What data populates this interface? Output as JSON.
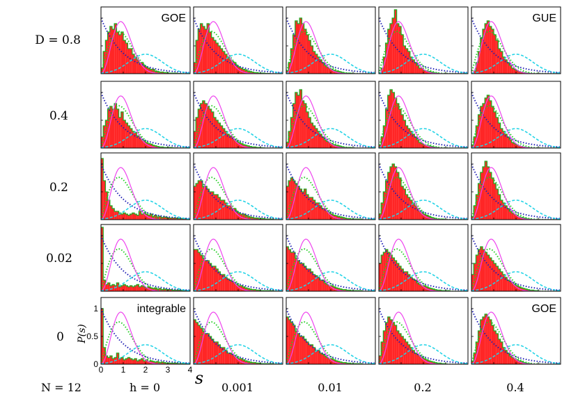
{
  "chart_data": {
    "type": "line",
    "description_kind": "grid of level-spacing distribution panels",
    "xlabel": "s",
    "ylabel": "P(s)",
    "xlim": [
      0,
      4
    ],
    "ylim": [
      0,
      1.2
    ],
    "x_ticks": [
      "0",
      "1",
      "2",
      "3",
      "4"
    ],
    "y_ticks": [
      "0",
      "0.5",
      "1"
    ],
    "row_parameter": "D",
    "rows": [
      "D = 0.8",
      "0.4",
      "0.2",
      "0.02",
      "0"
    ],
    "column_parameter": "h",
    "columns": [
      "h = 0",
      "0.001",
      "0.01",
      "0.2",
      "0.4"
    ],
    "size_label": "N = 12",
    "annotations": [
      {
        "row": 0,
        "col": 0,
        "text": "GOE"
      },
      {
        "row": 0,
        "col": 4,
        "text": "GUE"
      },
      {
        "row": 4,
        "col": 0,
        "text": "integrable"
      },
      {
        "row": 4,
        "col": 4,
        "text": "GOE"
      }
    ],
    "reference_curves": [
      {
        "name": "Poisson",
        "formula": "exp(-s)",
        "color": "#1f1fb4",
        "style": "dotted"
      },
      {
        "name": "GOE (Wigner)",
        "formula": "(pi/2) s exp(-pi s^2/4)",
        "color": "#22cc22",
        "style": "dotted"
      },
      {
        "name": "GUE",
        "formula": "(32/pi^2) s^2 exp(-4 s^2/pi)",
        "color": "#ee44ee",
        "style": "solid"
      },
      {
        "name": "Shifted Gaussian",
        "formula": "0.35 exp(-(s-2)^2/1.1)",
        "color": "#22d3e6",
        "style": "dashed"
      }
    ],
    "histogram_colors": {
      "fill": "#ff0000",
      "outline": "#22aa22"
    },
    "bin_edges": [
      0,
      0.1,
      0.2,
      0.3,
      0.4,
      0.5,
      0.6,
      0.7,
      0.8,
      0.9,
      1.0,
      1.1,
      1.2,
      1.3,
      1.4,
      1.5,
      1.6,
      1.7,
      1.8,
      1.9,
      2.0,
      2.1,
      2.2,
      2.3,
      2.4,
      2.5,
      2.6,
      2.7,
      2.8,
      2.9,
      3.0,
      3.2,
      3.4,
      3.6,
      3.8,
      4.0
    ],
    "histograms": [
      [
        [
          0.1,
          0.4,
          0.6,
          0.75,
          0.85,
          0.8,
          0.9,
          0.75,
          0.7,
          0.75,
          0.6,
          0.55,
          0.45,
          0.45,
          0.35,
          0.3,
          0.25,
          0.2,
          0.2,
          0.15,
          0.12,
          0.1,
          0.08,
          0.08,
          0.05,
          0.04,
          0.03,
          0.03,
          0.02,
          0.02,
          0.01,
          0.01,
          0.005,
          0.0,
          0.0
        ],
        [
          0.2,
          0.6,
          0.8,
          0.9,
          0.85,
          0.8,
          0.9,
          0.75,
          0.65,
          0.6,
          0.55,
          0.5,
          0.45,
          0.4,
          0.35,
          0.3,
          0.25,
          0.22,
          0.2,
          0.15,
          0.12,
          0.1,
          0.08,
          0.07,
          0.05,
          0.04,
          0.03,
          0.02,
          0.02,
          0.01,
          0.01,
          0.005,
          0.0,
          0.0,
          0.0
        ],
        [
          0.05,
          0.2,
          0.45,
          0.7,
          0.95,
          0.9,
          1.0,
          0.9,
          0.8,
          0.7,
          0.6,
          0.5,
          0.4,
          0.35,
          0.3,
          0.25,
          0.2,
          0.15,
          0.12,
          0.1,
          0.08,
          0.06,
          0.05,
          0.04,
          0.03,
          0.02,
          0.01,
          0.01,
          0.01,
          0.0,
          0.0,
          0.0,
          0.0,
          0.0,
          0.0
        ],
        [
          0.02,
          0.1,
          0.3,
          0.55,
          0.8,
          0.9,
          1.0,
          1.15,
          0.9,
          0.85,
          0.7,
          0.5,
          0.45,
          0.4,
          0.3,
          0.25,
          0.2,
          0.15,
          0.1,
          0.1,
          0.06,
          0.05,
          0.04,
          0.03,
          0.02,
          0.01,
          0.01,
          0.0,
          0.0,
          0.0,
          0.0,
          0.0,
          0.0,
          0.0,
          0.0
        ],
        [
          0.01,
          0.05,
          0.2,
          0.4,
          0.65,
          0.8,
          0.9,
          0.95,
          0.85,
          0.8,
          0.7,
          0.6,
          0.45,
          0.4,
          0.3,
          0.25,
          0.2,
          0.15,
          0.1,
          0.08,
          0.06,
          0.04,
          0.03,
          0.02,
          0.01,
          0.01,
          0.0,
          0.0,
          0.0,
          0.0,
          0.0,
          0.0,
          0.0,
          0.0,
          0.0
        ]
      ],
      [
        [
          0.2,
          0.4,
          0.5,
          0.7,
          0.75,
          0.7,
          0.8,
          0.7,
          0.55,
          0.65,
          0.5,
          0.45,
          0.4,
          0.35,
          0.3,
          0.28,
          0.22,
          0.2,
          0.15,
          0.13,
          0.1,
          0.08,
          0.07,
          0.05,
          0.04,
          0.03,
          0.02,
          0.02,
          0.01,
          0.01,
          0.01,
          0.005,
          0.0,
          0.0,
          0.0
        ],
        [
          0.3,
          0.55,
          0.7,
          0.8,
          0.85,
          0.8,
          0.75,
          0.7,
          0.65,
          0.55,
          0.5,
          0.45,
          0.4,
          0.35,
          0.3,
          0.25,
          0.22,
          0.2,
          0.15,
          0.12,
          0.1,
          0.08,
          0.06,
          0.05,
          0.04,
          0.03,
          0.02,
          0.02,
          0.01,
          0.01,
          0.005,
          0.0,
          0.0,
          0.0,
          0.0
        ],
        [
          0.1,
          0.3,
          0.55,
          0.8,
          1.0,
          0.95,
          1.05,
          0.85,
          0.8,
          0.65,
          0.55,
          0.45,
          0.4,
          0.35,
          0.3,
          0.25,
          0.2,
          0.15,
          0.12,
          0.1,
          0.08,
          0.06,
          0.05,
          0.04,
          0.03,
          0.02,
          0.01,
          0.01,
          0.01,
          0.0,
          0.0,
          0.0,
          0.0,
          0.0,
          0.0
        ],
        [
          0.05,
          0.2,
          0.4,
          0.7,
          0.95,
          1.05,
          1.0,
          0.9,
          0.8,
          0.7,
          0.6,
          0.5,
          0.4,
          0.35,
          0.3,
          0.25,
          0.2,
          0.15,
          0.1,
          0.08,
          0.06,
          0.05,
          0.04,
          0.03,
          0.02,
          0.01,
          0.01,
          0.0,
          0.0,
          0.0,
          0.0,
          0.0,
          0.0,
          0.0,
          0.0
        ],
        [
          0.05,
          0.2,
          0.4,
          0.6,
          0.75,
          0.8,
          0.9,
          0.95,
          0.85,
          0.75,
          0.65,
          0.55,
          0.45,
          0.35,
          0.3,
          0.25,
          0.2,
          0.15,
          0.1,
          0.08,
          0.06,
          0.04,
          0.03,
          0.02,
          0.01,
          0.01,
          0.0,
          0.0,
          0.0,
          0.0,
          0.0,
          0.0,
          0.0,
          0.0,
          0.0
        ]
      ],
      [
        [
          1.1,
          0.7,
          0.5,
          0.35,
          0.25,
          0.2,
          0.15,
          0.15,
          0.12,
          0.1,
          0.12,
          0.1,
          0.08,
          0.1,
          0.12,
          0.1,
          0.08,
          0.15,
          0.1,
          0.12,
          0.1,
          0.08,
          0.1,
          0.06,
          0.08,
          0.05,
          0.06,
          0.04,
          0.05,
          0.04,
          0.03,
          0.03,
          0.02,
          0.02,
          0.01
        ],
        [
          0.6,
          0.65,
          0.7,
          0.7,
          0.6,
          0.6,
          0.55,
          0.5,
          0.5,
          0.45,
          0.45,
          0.4,
          0.35,
          0.35,
          0.3,
          0.25,
          0.25,
          0.2,
          0.2,
          0.15,
          0.12,
          0.1,
          0.1,
          0.08,
          0.06,
          0.05,
          0.04,
          0.03,
          0.03,
          0.02,
          0.02,
          0.01,
          0.01,
          0.0,
          0.0
        ],
        [
          0.6,
          0.7,
          0.75,
          0.7,
          0.65,
          0.6,
          0.55,
          0.5,
          0.55,
          0.45,
          0.4,
          0.4,
          0.35,
          0.3,
          0.3,
          0.25,
          0.2,
          0.2,
          0.15,
          0.12,
          0.1,
          0.08,
          0.07,
          0.06,
          0.05,
          0.04,
          0.03,
          0.02,
          0.02,
          0.01,
          0.01,
          0.01,
          0.0,
          0.0,
          0.0
        ],
        [
          0.1,
          0.3,
          0.5,
          0.7,
          0.85,
          0.95,
          1.0,
          0.95,
          0.85,
          0.75,
          0.6,
          0.55,
          0.45,
          0.4,
          0.35,
          0.3,
          0.25,
          0.2,
          0.15,
          0.12,
          0.1,
          0.08,
          0.06,
          0.04,
          0.03,
          0.02,
          0.01,
          0.01,
          0.01,
          0.0,
          0.0,
          0.0,
          0.0,
          0.0,
          0.0
        ],
        [
          0.05,
          0.25,
          0.45,
          0.65,
          0.85,
          0.95,
          1.05,
          0.95,
          0.85,
          0.75,
          0.65,
          0.55,
          0.45,
          0.35,
          0.3,
          0.25,
          0.2,
          0.15,
          0.12,
          0.1,
          0.08,
          0.05,
          0.04,
          0.03,
          0.02,
          0.01,
          0.01,
          0.0,
          0.0,
          0.0,
          0.0,
          0.0,
          0.0,
          0.0,
          0.0
        ]
      ],
      [
        [
          1.15,
          0.2,
          0.12,
          0.15,
          0.1,
          0.12,
          0.1,
          0.15,
          0.08,
          0.1,
          0.12,
          0.1,
          0.08,
          0.1,
          0.08,
          0.1,
          0.12,
          0.08,
          0.1,
          0.08,
          0.06,
          0.08,
          0.06,
          0.05,
          0.06,
          0.04,
          0.05,
          0.03,
          0.04,
          0.03,
          0.03,
          0.02,
          0.02,
          0.01,
          0.01
        ],
        [
          0.75,
          0.75,
          0.7,
          0.65,
          0.6,
          0.55,
          0.55,
          0.5,
          0.45,
          0.45,
          0.4,
          0.35,
          0.3,
          0.3,
          0.25,
          0.22,
          0.2,
          0.18,
          0.15,
          0.12,
          0.1,
          0.1,
          0.08,
          0.06,
          0.05,
          0.04,
          0.03,
          0.03,
          0.02,
          0.02,
          0.01,
          0.01,
          0.01,
          0.0,
          0.0
        ],
        [
          0.8,
          0.75,
          0.7,
          0.7,
          0.6,
          0.55,
          0.5,
          0.5,
          0.45,
          0.4,
          0.4,
          0.35,
          0.3,
          0.28,
          0.25,
          0.2,
          0.2,
          0.15,
          0.12,
          0.1,
          0.1,
          0.08,
          0.06,
          0.05,
          0.04,
          0.03,
          0.03,
          0.02,
          0.02,
          0.01,
          0.01,
          0.01,
          0.0,
          0.0,
          0.0
        ],
        [
          0.5,
          0.65,
          0.7,
          0.75,
          0.7,
          0.65,
          0.6,
          0.55,
          0.5,
          0.45,
          0.4,
          0.35,
          0.35,
          0.3,
          0.25,
          0.22,
          0.2,
          0.15,
          0.12,
          0.1,
          0.1,
          0.08,
          0.06,
          0.05,
          0.04,
          0.03,
          0.02,
          0.02,
          0.01,
          0.01,
          0.01,
          0.0,
          0.0,
          0.0,
          0.0
        ],
        [
          0.3,
          0.5,
          0.65,
          0.75,
          0.8,
          0.75,
          0.7,
          0.65,
          0.6,
          0.55,
          0.5,
          0.45,
          0.4,
          0.35,
          0.3,
          0.25,
          0.2,
          0.18,
          0.15,
          0.12,
          0.1,
          0.08,
          0.06,
          0.05,
          0.04,
          0.03,
          0.02,
          0.02,
          0.01,
          0.01,
          0.0,
          0.0,
          0.0,
          0.0,
          0.0
        ]
      ],
      [
        [
          1.0,
          0.3,
          0.15,
          0.12,
          0.15,
          0.1,
          0.12,
          0.2,
          0.1,
          0.12,
          0.08,
          0.1,
          0.12,
          0.1,
          0.08,
          0.1,
          0.06,
          0.08,
          0.1,
          0.06,
          0.08,
          0.05,
          0.06,
          0.05,
          0.04,
          0.05,
          0.03,
          0.04,
          0.03,
          0.02,
          0.02,
          0.02,
          0.01,
          0.01,
          0.01
        ],
        [
          0.8,
          0.75,
          0.7,
          0.65,
          0.6,
          0.55,
          0.55,
          0.5,
          0.45,
          0.4,
          0.4,
          0.35,
          0.3,
          0.3,
          0.25,
          0.2,
          0.2,
          0.18,
          0.15,
          0.12,
          0.1,
          0.1,
          0.08,
          0.06,
          0.05,
          0.04,
          0.03,
          0.03,
          0.02,
          0.02,
          0.01,
          0.01,
          0.01,
          0.0,
          0.0
        ],
        [
          0.85,
          0.8,
          0.75,
          0.7,
          0.6,
          0.55,
          0.5,
          0.5,
          0.45,
          0.4,
          0.35,
          0.35,
          0.3,
          0.25,
          0.25,
          0.2,
          0.18,
          0.15,
          0.12,
          0.1,
          0.1,
          0.08,
          0.06,
          0.05,
          0.04,
          0.03,
          0.03,
          0.02,
          0.02,
          0.01,
          0.01,
          0.01,
          0.0,
          0.0,
          0.0
        ],
        [
          0.15,
          0.4,
          0.6,
          0.75,
          0.85,
          0.8,
          0.75,
          0.7,
          0.6,
          0.55,
          0.5,
          0.45,
          0.4,
          0.35,
          0.3,
          0.25,
          0.2,
          0.18,
          0.15,
          0.12,
          0.1,
          0.08,
          0.06,
          0.05,
          0.04,
          0.03,
          0.02,
          0.02,
          0.01,
          0.01,
          0.0,
          0.0,
          0.0,
          0.0,
          0.0
        ],
        [
          0.05,
          0.2,
          0.4,
          0.6,
          0.8,
          0.85,
          0.9,
          0.85,
          0.8,
          0.7,
          0.6,
          0.55,
          0.45,
          0.4,
          0.3,
          0.25,
          0.2,
          0.15,
          0.12,
          0.1,
          0.08,
          0.06,
          0.05,
          0.03,
          0.02,
          0.01,
          0.01,
          0.0,
          0.0,
          0.0,
          0.0,
          0.0,
          0.0,
          0.0,
          0.0
        ]
      ]
    ]
  }
}
